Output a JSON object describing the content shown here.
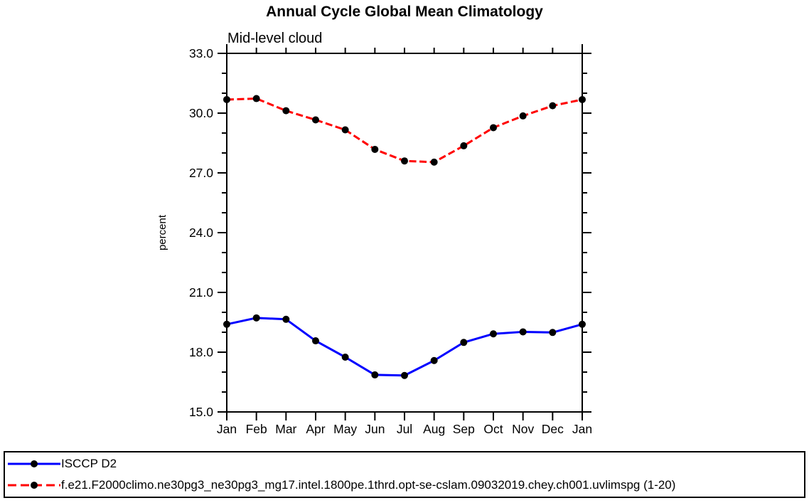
{
  "title": "Annual Cycle Global Mean Climatology",
  "subtitle": "Mid-level cloud",
  "chart_data": {
    "type": "line",
    "title": "Annual Cycle Global Mean Climatology",
    "subtitle": "Mid-level cloud",
    "xlabel": "",
    "ylabel": "percent",
    "x_categories": [
      "Jan",
      "Feb",
      "Mar",
      "Apr",
      "May",
      "Jun",
      "Jul",
      "Aug",
      "Sep",
      "Oct",
      "Nov",
      "Dec",
      "Jan"
    ],
    "ylim": [
      15.0,
      33.0
    ],
    "ytick_major_values": [
      15,
      18,
      21,
      24,
      27,
      30,
      33
    ],
    "ytick_major_labels": [
      "15.0",
      "18.0",
      "21.0",
      "24.0",
      "27.0",
      "30.0",
      "33.0"
    ],
    "ytick_minor_step": 1.0,
    "grid": false,
    "legend_position": "bottom-box",
    "axis_color": "#000000",
    "marker_color": "#000000",
    "series": [
      {
        "name": "ISCCP D2",
        "color": "#0000ff",
        "line_style": "solid",
        "marker": "circle",
        "values": [
          19.4,
          19.72,
          19.65,
          18.57,
          17.75,
          16.86,
          16.83,
          17.58,
          18.49,
          18.92,
          19.02,
          18.99,
          19.4
        ]
      },
      {
        "name": "f.e21.F2000climo.ne30pg3_ne30pg3_mg17.intel.1800pe.1thrd.opt-se-cslam.09032019.chey.ch001.uvlimspg (1-20)",
        "color": "#ff0000",
        "line_style": "dashed",
        "marker": "circle",
        "values": [
          30.68,
          30.73,
          30.12,
          29.66,
          29.16,
          28.18,
          27.6,
          27.54,
          28.36,
          29.27,
          29.86,
          30.37,
          30.68
        ]
      }
    ]
  }
}
